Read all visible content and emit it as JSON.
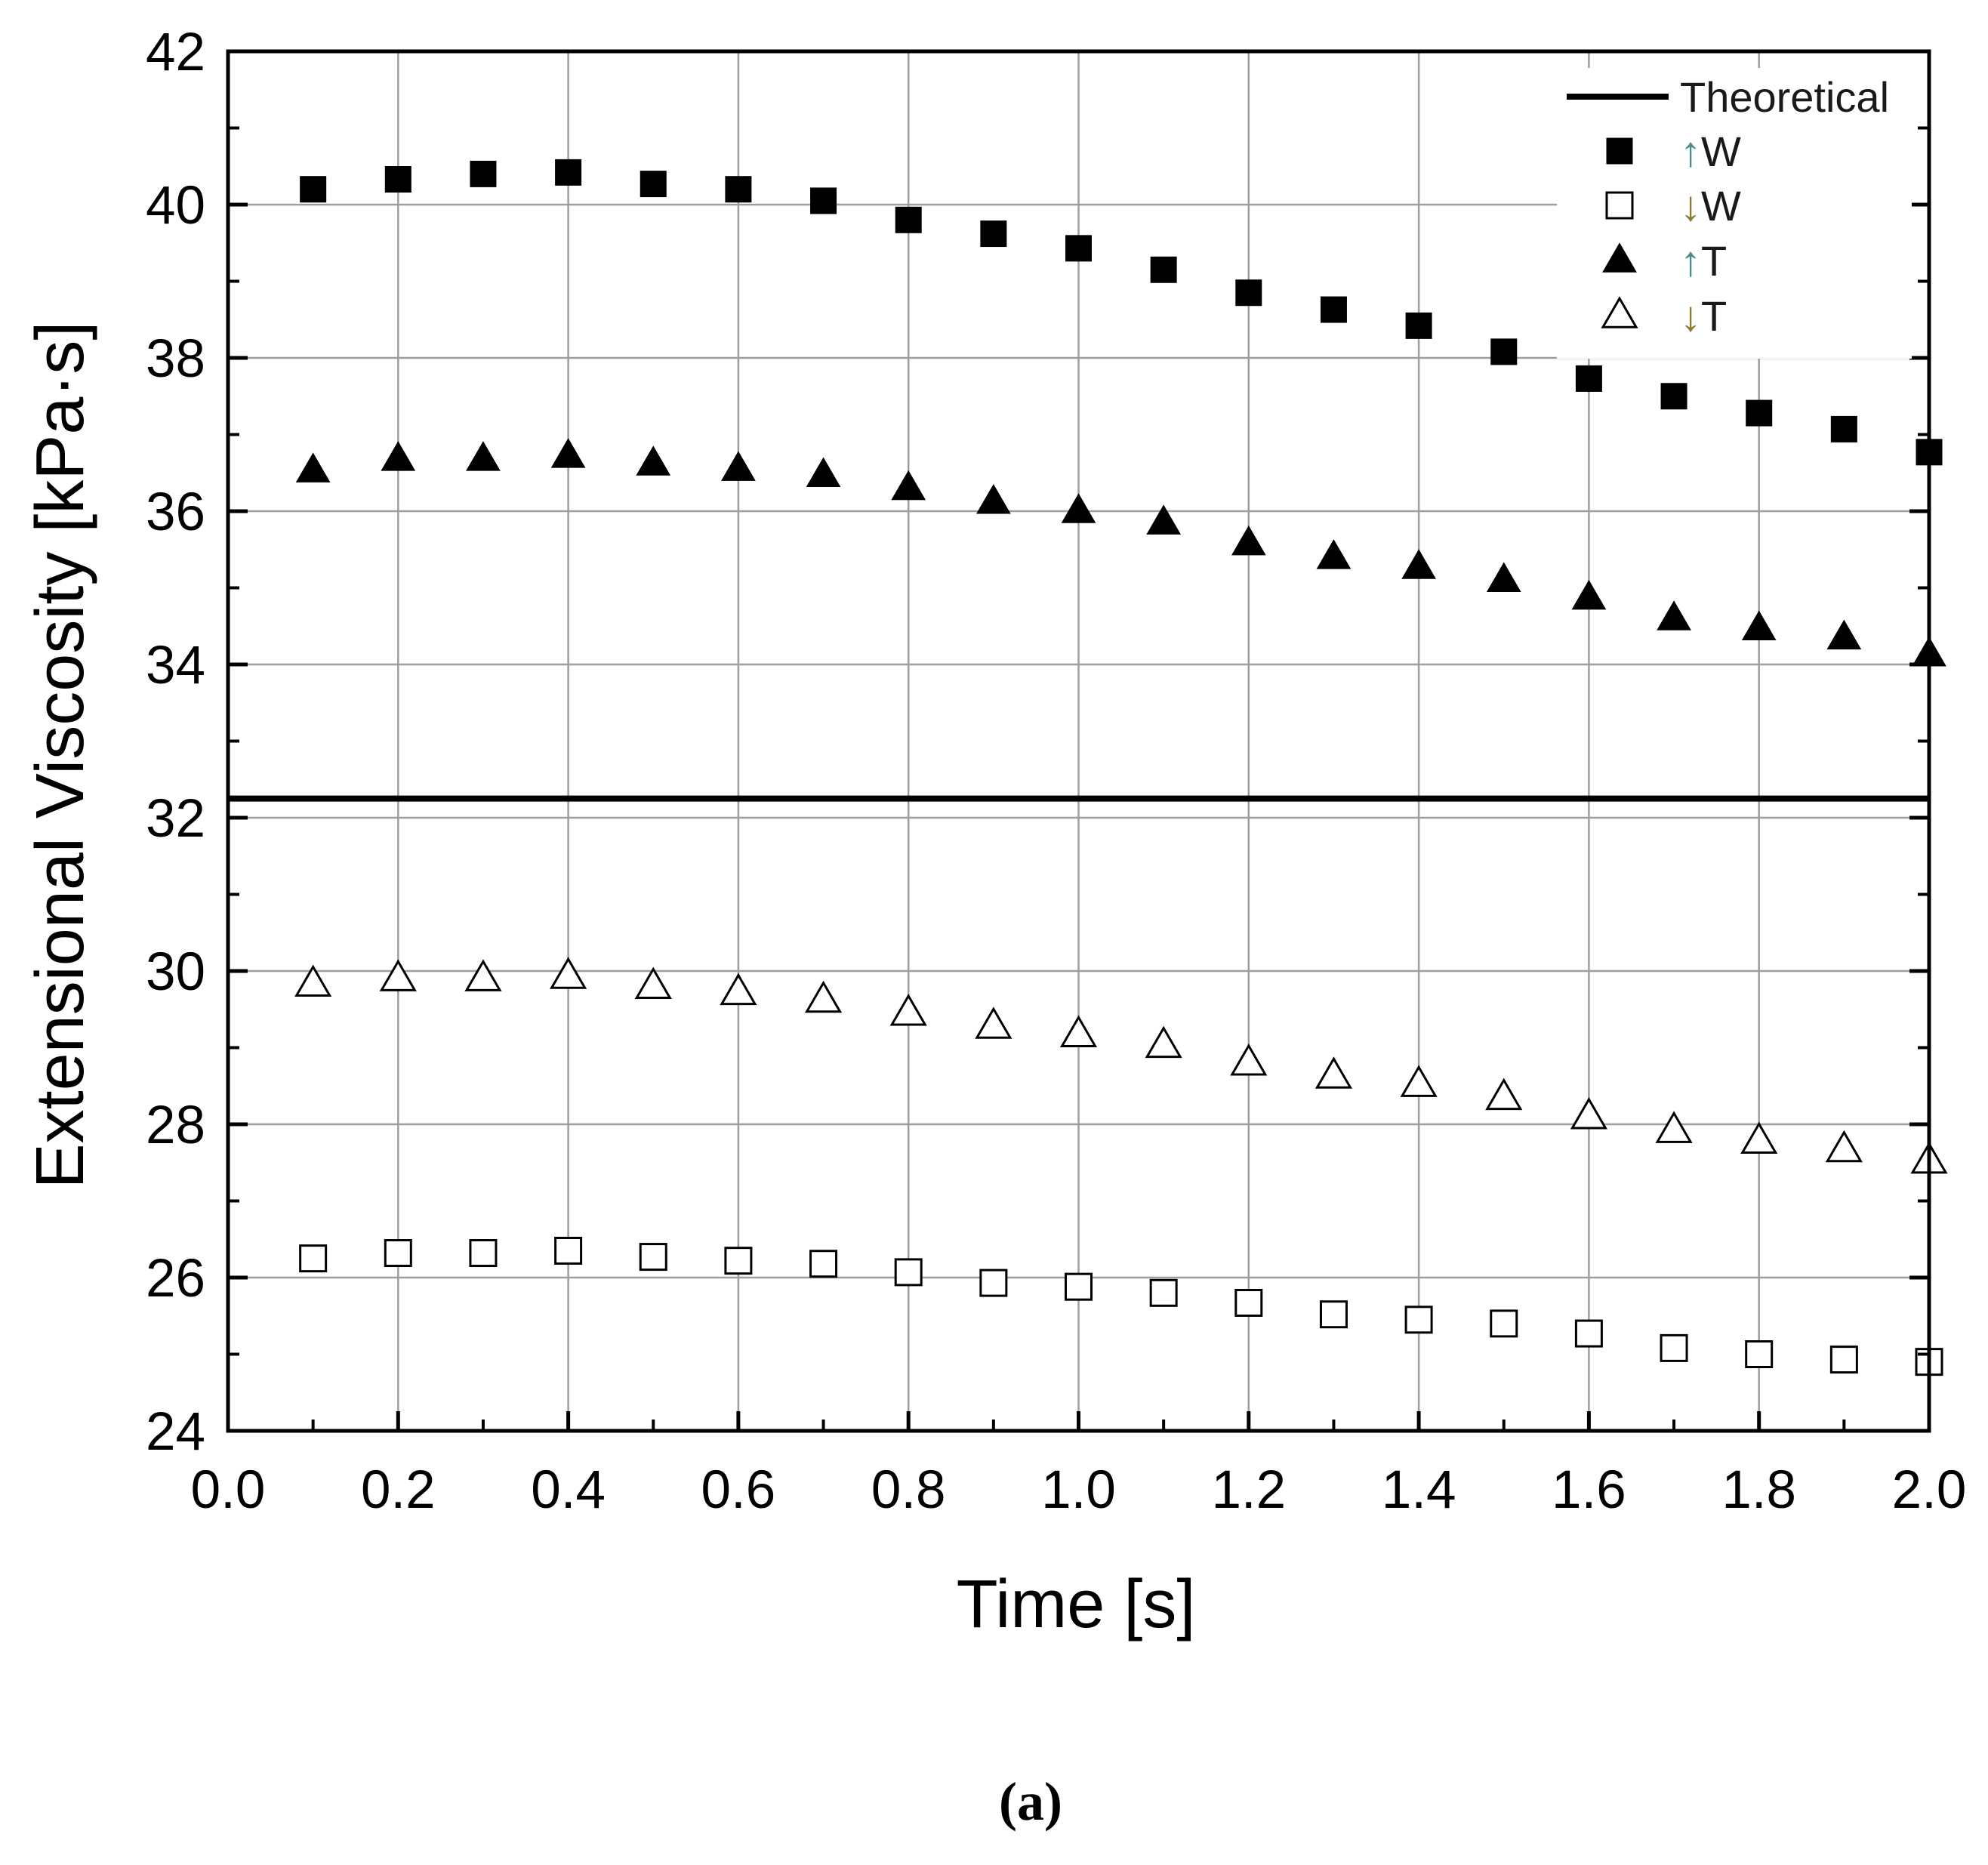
{
  "caption": "(a)",
  "chart_data": {
    "type": "scatter",
    "title": "",
    "xlabel": "Time [s]",
    "ylabel": "Extensional Viscosity [kPa·s]",
    "xlim": [
      0.0,
      2.0
    ],
    "ylim": [
      24,
      42
    ],
    "grid": true,
    "x_ticks": [
      0.0,
      0.2,
      0.4,
      0.6,
      0.8,
      1.0,
      1.2,
      1.4,
      1.6,
      1.8,
      2.0
    ],
    "x_tick_labels": [
      "0.0",
      "0.2",
      "0.4",
      "0.6",
      "0.8",
      "1.0",
      "1.2",
      "1.4",
      "1.6",
      "1.8",
      "2.0"
    ],
    "y_ticks": [
      24,
      26,
      28,
      30,
      32,
      34,
      36,
      38,
      40,
      42
    ],
    "y_tick_labels": [
      "24",
      "26",
      "28",
      "30",
      "32",
      "34",
      "36",
      "38",
      "40",
      "42"
    ],
    "legend_position": "top-right",
    "theoretical": {
      "name": "Theoretical",
      "value": 32.25,
      "color": "#000000"
    },
    "x": [
      0.1,
      0.2,
      0.3,
      0.4,
      0.5,
      0.6,
      0.7,
      0.8,
      0.9,
      1.0,
      1.1,
      1.2,
      1.3,
      1.4,
      1.5,
      1.6,
      1.7,
      1.8,
      1.9,
      2.0
    ],
    "series": [
      {
        "name": "↑W",
        "arrow": "↑",
        "letter": "W",
        "marker": "filled-square",
        "color": "#000000",
        "values": [
          40.2,
          40.33,
          40.4,
          40.42,
          40.27,
          40.2,
          40.05,
          39.8,
          39.62,
          39.43,
          39.15,
          38.85,
          38.63,
          38.42,
          38.08,
          37.73,
          37.5,
          37.28,
          37.07,
          36.77
        ]
      },
      {
        "name": "↓W",
        "arrow": "↓",
        "letter": "W",
        "marker": "open-square",
        "color": "#000000",
        "values": [
          26.25,
          26.32,
          26.32,
          26.35,
          26.27,
          26.22,
          26.18,
          26.07,
          25.93,
          25.88,
          25.8,
          25.67,
          25.52,
          25.45,
          25.4,
          25.27,
          25.08,
          25.0,
          24.93,
          24.9
        ]
      },
      {
        "name": "↑T",
        "arrow": "↑",
        "letter": "T",
        "marker": "filled-triangle",
        "color": "#000000",
        "values": [
          36.53,
          36.68,
          36.68,
          36.72,
          36.62,
          36.55,
          36.47,
          36.3,
          36.12,
          36.0,
          35.85,
          35.58,
          35.4,
          35.27,
          35.1,
          34.87,
          34.6,
          34.47,
          34.35,
          34.13
        ]
      },
      {
        "name": "↓T",
        "arrow": "↓",
        "letter": "T",
        "marker": "open-triangle",
        "color": "#000000",
        "values": [
          29.83,
          29.9,
          29.9,
          29.93,
          29.8,
          29.72,
          29.62,
          29.45,
          29.28,
          29.17,
          29.03,
          28.8,
          28.63,
          28.52,
          28.35,
          28.1,
          27.92,
          27.78,
          27.67,
          27.52
        ]
      }
    ]
  },
  "colors": {
    "axis": "#000000",
    "grid": "#9e9e9e",
    "arrow_up": "#4f8a8b",
    "arrow_down": "#8a7a3a",
    "background": "#ffffff"
  }
}
